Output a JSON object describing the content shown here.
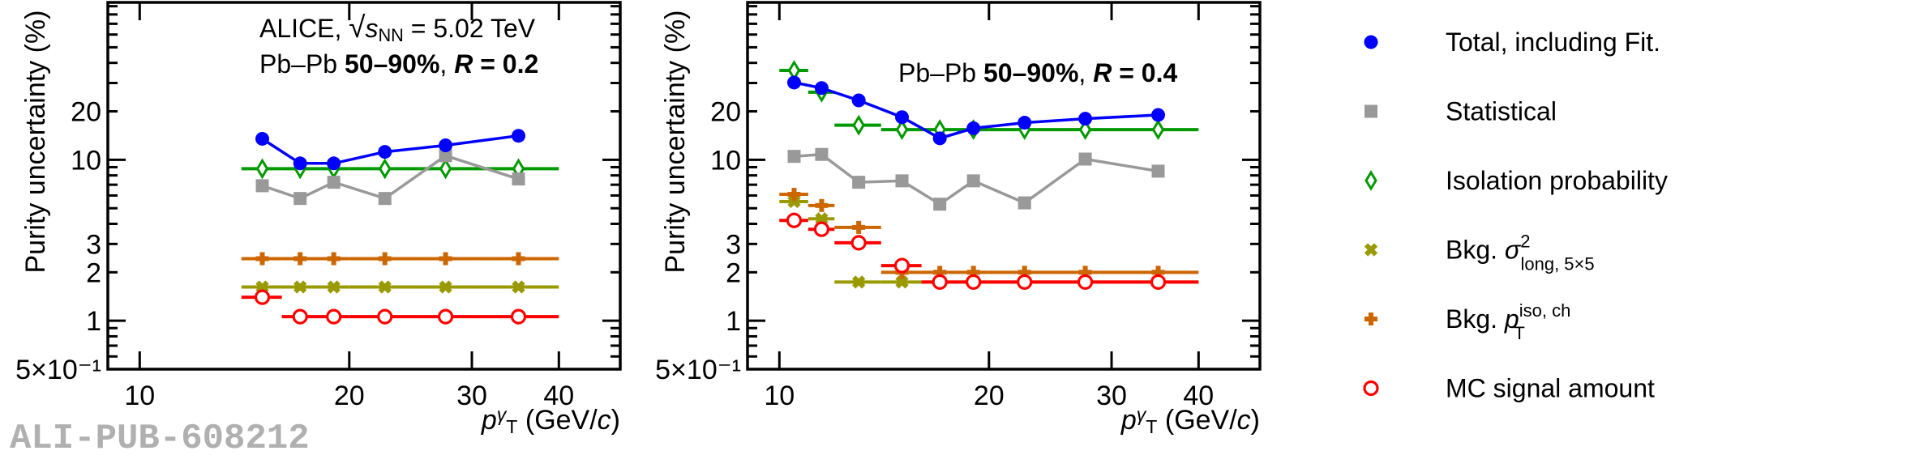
{
  "figure": {
    "watermark": "ALI-PUB-608212"
  },
  "chart_data": [
    {
      "type": "line",
      "panel": "left",
      "title": "",
      "annotation_lines": [
        [
          {
            "text": "ALICE,  ",
            "style": "normal"
          },
          {
            "text": "√",
            "style": "sqrt"
          },
          {
            "text": "s",
            "style": "italic"
          },
          {
            "text": "NN",
            "style": "sub"
          },
          {
            "text": " = 5.02 TeV",
            "style": "normal"
          }
        ],
        [
          {
            "text": "Pb–Pb ",
            "style": "normal"
          },
          {
            "text": "50–90%",
            "style": "bold"
          },
          {
            "text": ", ",
            "style": "normal"
          },
          {
            "text": "R",
            "style": "bold-italic"
          },
          {
            "text": " = 0.2",
            "style": "bold"
          }
        ]
      ],
      "xlabel": "p_T^γ (GeV/c)",
      "ylabel": "Purity uncertainty (%)",
      "xscale": "log",
      "yscale": "log",
      "xlim": [
        9,
        49
      ],
      "ylim": [
        0.5,
        95
      ],
      "xticks": [
        10,
        20,
        30,
        40
      ],
      "xtick_labels": [
        "10",
        "20",
        "30",
        "40"
      ],
      "yticks": [
        0.5,
        1,
        2,
        3,
        10,
        20
      ],
      "ytick_labels": [
        "5×10⁻¹",
        "1",
        "2",
        "3",
        "10",
        "20"
      ],
      "grid": false,
      "series": [
        {
          "name": "Total, including Fit.",
          "key": "total",
          "marker": "filled-circle",
          "color": "#0000ff",
          "connect": true,
          "x": [
            15,
            17,
            19,
            22.5,
            27.5,
            35
          ],
          "xerr_low": [
            14,
            16,
            18,
            20,
            25,
            30
          ],
          "xerr_high": [
            16,
            18,
            20,
            25,
            30,
            40
          ],
          "show_xerr": false,
          "values": [
            13.5,
            9.5,
            9.5,
            11.2,
            12.3,
            14.1
          ]
        },
        {
          "name": "Statistical",
          "key": "stat",
          "marker": "filled-square",
          "color": "#999999",
          "connect": true,
          "x": [
            15,
            17,
            19,
            22.5,
            27.5,
            35
          ],
          "xerr_low": [
            14,
            16,
            18,
            20,
            25,
            30
          ],
          "xerr_high": [
            16,
            18,
            20,
            25,
            30,
            40
          ],
          "show_xerr": false,
          "values": [
            6.9,
            5.75,
            7.25,
            5.75,
            10.6,
            7.6
          ]
        },
        {
          "name": "Isolation probability",
          "key": "iso",
          "marker": "open-diamond",
          "color": "#009900",
          "connect": false,
          "x": [
            15,
            17,
            19,
            22.5,
            27.5,
            35
          ],
          "xerr_low": [
            14,
            16,
            18,
            20,
            25,
            30
          ],
          "xerr_high": [
            16,
            18,
            20,
            25,
            30,
            40
          ],
          "show_xerr": true,
          "values": [
            8.8,
            8.8,
            8.8,
            8.8,
            8.8,
            8.8
          ]
        },
        {
          "name": "Bkg. σ²_long,5×5",
          "key": "sigma",
          "marker": "x-cross",
          "color": "#999900",
          "connect": false,
          "x": [
            15,
            17,
            19,
            22.5,
            27.5,
            35
          ],
          "xerr_low": [
            14,
            16,
            18,
            20,
            25,
            30
          ],
          "xerr_high": [
            16,
            18,
            20,
            25,
            30,
            40
          ],
          "show_xerr": true,
          "values": [
            1.62,
            1.62,
            1.62,
            1.62,
            1.62,
            1.62
          ]
        },
        {
          "name": "Bkg. p_T^iso,ch",
          "key": "ptiso",
          "marker": "plus",
          "color": "#cc6600",
          "connect": false,
          "x": [
            15,
            17,
            19,
            22.5,
            27.5,
            35
          ],
          "xerr_low": [
            14,
            16,
            18,
            20,
            25,
            30
          ],
          "xerr_high": [
            16,
            18,
            20,
            25,
            30,
            40
          ],
          "show_xerr": true,
          "values": [
            2.43,
            2.43,
            2.43,
            2.43,
            2.43,
            2.43
          ]
        },
        {
          "name": "MC signal amount",
          "key": "mc",
          "marker": "open-circle",
          "color": "#ff0000",
          "connect": false,
          "x": [
            15,
            17,
            19,
            22.5,
            27.5,
            35
          ],
          "xerr_low": [
            14,
            16,
            18,
            20,
            25,
            30
          ],
          "xerr_high": [
            16,
            18,
            20,
            25,
            30,
            40
          ],
          "show_xerr": true,
          "values": [
            1.4,
            1.06,
            1.06,
            1.06,
            1.06,
            1.06
          ]
        }
      ]
    },
    {
      "type": "line",
      "panel": "right",
      "title": "",
      "annotation_lines": [
        [
          {
            "text": "Pb–Pb ",
            "style": "normal"
          },
          {
            "text": "50–90%",
            "style": "bold"
          },
          {
            "text": ", ",
            "style": "normal"
          },
          {
            "text": "R",
            "style": "bold-italic"
          },
          {
            "text": " = 0.4",
            "style": "bold"
          }
        ]
      ],
      "xlabel": "p_T^γ (GeV/c)",
      "ylabel": "Purity uncertainty (%)",
      "xscale": "log",
      "yscale": "log",
      "xlim": [
        9,
        49
      ],
      "ylim": [
        0.5,
        95
      ],
      "xticks": [
        10,
        20,
        30,
        40
      ],
      "xtick_labels": [
        "10",
        "20",
        "30",
        "40"
      ],
      "yticks": [
        0.5,
        1,
        2,
        3,
        10,
        20
      ],
      "ytick_labels": [
        "5×10⁻¹",
        "1",
        "2",
        "3",
        "10",
        "20"
      ],
      "grid": false,
      "series": [
        {
          "name": "Total, including Fit.",
          "key": "total",
          "marker": "filled-circle",
          "color": "#0000ff",
          "connect": true,
          "x": [
            10.5,
            11.5,
            13,
            15,
            17,
            19,
            22.5,
            27.5,
            35
          ],
          "xerr_low": [
            10,
            11,
            12,
            14,
            16,
            18,
            20,
            25,
            30
          ],
          "xerr_high": [
            11,
            12,
            14,
            16,
            18,
            20,
            25,
            30,
            40
          ],
          "show_xerr": false,
          "values": [
            30.2,
            27.9,
            23.4,
            18.4,
            13.6,
            15.7,
            17.0,
            18.0,
            19.0
          ]
        },
        {
          "name": "Statistical",
          "key": "stat",
          "marker": "filled-square",
          "color": "#999999",
          "connect": true,
          "x": [
            10.5,
            11.5,
            13,
            15,
            17,
            19,
            22.5,
            27.5,
            35
          ],
          "xerr_low": [
            10,
            11,
            12,
            14,
            16,
            18,
            20,
            25,
            30
          ],
          "xerr_high": [
            11,
            12,
            14,
            16,
            18,
            20,
            25,
            30,
            40
          ],
          "show_xerr": false,
          "values": [
            10.5,
            10.8,
            7.25,
            7.4,
            5.3,
            7.4,
            5.4,
            10.1,
            8.5
          ]
        },
        {
          "name": "Isolation probability",
          "key": "iso",
          "marker": "open-diamond",
          "color": "#009900",
          "connect": false,
          "x": [
            10.5,
            11.5,
            13,
            15,
            17,
            19,
            22.5,
            27.5,
            35
          ],
          "xerr_low": [
            10,
            11,
            12,
            14,
            16,
            18,
            20,
            25,
            30
          ],
          "xerr_high": [
            11,
            12,
            14,
            16,
            18,
            20,
            25,
            30,
            40
          ],
          "show_xerr": true,
          "values": [
            35.9,
            26.3,
            16.4,
            15.4,
            15.4,
            15.4,
            15.4,
            15.4,
            15.4
          ]
        },
        {
          "name": "Bkg. σ²_long,5×5",
          "key": "sigma",
          "marker": "x-cross",
          "color": "#999900",
          "connect": false,
          "x": [
            10.5,
            11.5,
            13,
            15,
            17,
            19,
            22.5,
            27.5,
            35
          ],
          "xerr_low": [
            10,
            11,
            12,
            14,
            16,
            18,
            20,
            25,
            30
          ],
          "xerr_high": [
            11,
            12,
            14,
            16,
            18,
            20,
            25,
            30,
            40
          ],
          "show_xerr": true,
          "values": [
            5.5,
            4.3,
            1.74,
            1.74,
            1.74,
            1.74,
            1.74,
            1.74,
            1.74
          ]
        },
        {
          "name": "Bkg. p_T^iso,ch",
          "key": "ptiso",
          "marker": "plus",
          "color": "#cc6600",
          "connect": false,
          "x": [
            10.5,
            11.5,
            13,
            15,
            17,
            19,
            22.5,
            27.5,
            35
          ],
          "xerr_low": [
            10,
            11,
            12,
            14,
            16,
            18,
            20,
            25,
            30
          ],
          "xerr_high": [
            11,
            12,
            14,
            16,
            18,
            20,
            25,
            30,
            40
          ],
          "show_xerr": true,
          "values": [
            6.1,
            5.2,
            3.8,
            2.0,
            2.0,
            2.0,
            2.0,
            2.0,
            2.0
          ]
        },
        {
          "name": "MC signal amount",
          "key": "mc",
          "marker": "open-circle",
          "color": "#ff0000",
          "connect": false,
          "x": [
            10.5,
            11.5,
            13,
            15,
            17,
            19,
            22.5,
            27.5,
            35
          ],
          "xerr_low": [
            10,
            11,
            12,
            14,
            16,
            18,
            20,
            25,
            30
          ],
          "xerr_high": [
            11,
            12,
            14,
            16,
            18,
            20,
            25,
            30,
            40
          ],
          "show_xerr": true,
          "values": [
            4.2,
            3.7,
            3.05,
            2.2,
            1.74,
            1.74,
            1.74,
            1.74,
            1.74
          ]
        }
      ]
    }
  ],
  "legend": {
    "placement": "right",
    "entries": [
      {
        "key": "total",
        "marker": "filled-circle",
        "color": "#0000ff",
        "parts": [
          {
            "text": "Total, including Fit.",
            "style": "normal"
          }
        ]
      },
      {
        "key": "stat",
        "marker": "filled-square",
        "color": "#999999",
        "parts": [
          {
            "text": "Statistical",
            "style": "normal"
          }
        ]
      },
      {
        "key": "iso",
        "marker": "open-diamond",
        "color": "#009900",
        "parts": [
          {
            "text": "Isolation probability",
            "style": "normal"
          }
        ]
      },
      {
        "key": "sigma",
        "marker": "x-cross",
        "color": "#999900",
        "parts": [
          {
            "text": "Bkg. ",
            "style": "normal"
          },
          {
            "text": "σ",
            "style": "italic"
          },
          {
            "text": "2",
            "style": "sup"
          },
          {
            "text": "long, 5×5",
            "style": "sub"
          }
        ]
      },
      {
        "key": "ptiso",
        "marker": "plus",
        "color": "#cc6600",
        "parts": [
          {
            "text": "Bkg. ",
            "style": "normal"
          },
          {
            "text": "p",
            "style": "italic"
          },
          {
            "text": "iso, ch",
            "style": "sup"
          },
          {
            "text": "T",
            "style": "sub"
          }
        ]
      },
      {
        "key": "mc",
        "marker": "open-circle",
        "color": "#ff0000",
        "parts": [
          {
            "text": "MC signal amount",
            "style": "normal"
          }
        ]
      }
    ]
  },
  "axis_label_parts": {
    "x": [
      {
        "text": "p",
        "style": "italic"
      },
      {
        "text": "γ",
        "style": "sup-italic"
      },
      {
        "text": "T",
        "style": "sub"
      },
      {
        "text": " (GeV/",
        "style": "normal"
      },
      {
        "text": "c",
        "style": "italic"
      },
      {
        "text": ")",
        "style": "normal"
      }
    ],
    "y": "Purity uncertainty (%)"
  }
}
